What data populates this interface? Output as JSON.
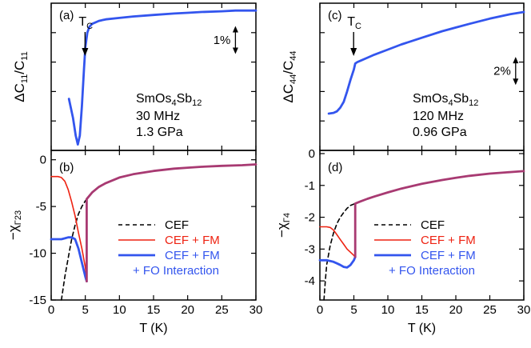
{
  "colors": {
    "cef": "#000000",
    "cef_fm": "#ee2211",
    "cef_fm_fo": "#3355ee",
    "common": "#a83a72"
  },
  "chart_data": [
    {
      "id": "a",
      "type": "line",
      "panel_label": "(a)",
      "ylabel_main": "ΔC",
      "ylabel_sub1": "11",
      "ylabel_mid": "/C",
      "ylabel_sub2": "11",
      "xlim": [
        0,
        30
      ],
      "ylim": [
        0,
        100
      ],
      "yticks_labeled": false,
      "annotation": {
        "label": "T",
        "label_sub": "C",
        "x": 5.2
      },
      "scale_bar": {
        "label": "1%",
        "x": 27,
        "y_from": 84,
        "y_to": 66
      },
      "sample_text": {
        "main": "SmOs",
        "s1": "4",
        "mid": "Sb",
        "s2": "12"
      },
      "info_lines": [
        "30 MHz",
        "1.3 GPa"
      ],
      "series": [
        {
          "color_key": "cef_fm_fo",
          "x": [
            2.6,
            3.2,
            3.6,
            3.9,
            4.2,
            4.5,
            4.8,
            5.0,
            5.3,
            5.6,
            6.0,
            7,
            8,
            10,
            12,
            15,
            18,
            20,
            22,
            25,
            27,
            30
          ],
          "y": [
            35,
            22,
            10,
            4,
            10,
            30,
            55,
            70,
            80,
            84,
            86,
            88,
            89,
            90,
            91,
            92,
            93,
            93.5,
            94,
            94.5,
            95,
            95
          ]
        }
      ]
    },
    {
      "id": "b",
      "type": "line",
      "panel_label": "(b)",
      "ylabel_main": "−χ",
      "ylabel_sub1": "Γ23",
      "xlabel": "T (K)",
      "xlim": [
        0,
        30
      ],
      "ylim": [
        -15,
        1
      ],
      "xticks": [
        0,
        5,
        10,
        15,
        20,
        25,
        30
      ],
      "yticks": [
        0,
        -5,
        -10,
        -15
      ],
      "ytick_labels": [
        "0",
        "-5",
        "-10",
        "-15"
      ],
      "legend": [
        {
          "label": "CEF",
          "color_key": "cef",
          "dash": true
        },
        {
          "label": "CEF + FM",
          "color_key": "cef_fm",
          "dash": false
        },
        {
          "label": "CEF + FM",
          "color_key": "cef_fm_fo",
          "dash": false
        },
        {
          "label": "+ FO Interaction",
          "color_key": "cef_fm_fo",
          "dash": false,
          "continuation": true
        }
      ],
      "series": [
        {
          "color_key": "cef",
          "dash": true,
          "x": [
            1.5,
            2,
            2.5,
            3,
            3.5,
            4,
            4.5,
            5,
            5.2
          ],
          "y": [
            -15,
            -12.5,
            -10.5,
            -8.5,
            -7,
            -5.8,
            -5,
            -4.4,
            -4.2
          ]
        },
        {
          "color_key": "cef_fm",
          "x": [
            0,
            1,
            1.5,
            2,
            2.5,
            3,
            3.5,
            4,
            4.5,
            5,
            5.2
          ],
          "y": [
            -1.8,
            -1.8,
            -1.9,
            -2.3,
            -3.2,
            -4.5,
            -6,
            -7.8,
            -9.5,
            -11.5,
            -13
          ]
        },
        {
          "color_key": "cef_fm_fo",
          "x": [
            0,
            1,
            1.5,
            2,
            2.5,
            3,
            3.5,
            4,
            4.5,
            5,
            5.2
          ],
          "y": [
            -8.5,
            -8.5,
            -8.5,
            -8.4,
            -8.3,
            -8.3,
            -8.5,
            -9.5,
            -11,
            -12.5,
            -13
          ]
        },
        {
          "color_key": "common",
          "x": [
            5.2,
            5.2,
            6,
            7,
            8,
            10,
            12,
            15,
            18,
            20,
            22,
            25,
            28,
            30
          ],
          "y": [
            -13,
            -4.2,
            -3.5,
            -2.9,
            -2.5,
            -1.9,
            -1.55,
            -1.2,
            -0.95,
            -0.85,
            -0.75,
            -0.65,
            -0.58,
            -0.5
          ]
        }
      ]
    },
    {
      "id": "c",
      "type": "line",
      "panel_label": "(c)",
      "ylabel_main": "ΔC",
      "ylabel_sub1": "44",
      "ylabel_mid": "/C",
      "ylabel_sub2": "44",
      "xlim": [
        0,
        30
      ],
      "ylim": [
        0,
        100
      ],
      "yticks_labeled": false,
      "annotation": {
        "label": "T",
        "label_sub": "C",
        "x": 5.2
      },
      "scale_bar": {
        "label": "2%",
        "x": 28.8,
        "y_from": 63,
        "y_to": 45
      },
      "sample_text": {
        "main": "SmOs",
        "s1": "4",
        "mid": "Sb",
        "s2": "12"
      },
      "info_lines": [
        "120 MHz",
        "0.96 GPa"
      ],
      "series": [
        {
          "color_key": "cef_fm_fo",
          "x": [
            1.3,
            2,
            2.5,
            3,
            3.5,
            4,
            4.5,
            5,
            5.2,
            5.5,
            6,
            7,
            8,
            10,
            12,
            15,
            18,
            20,
            22,
            25,
            28,
            30
          ],
          "y": [
            25,
            25.5,
            26.5,
            29,
            33,
            40,
            48,
            55,
            59,
            60,
            61,
            63,
            65,
            68.5,
            72,
            76.5,
            81,
            83.5,
            86,
            89.5,
            92.5,
            94
          ]
        }
      ]
    },
    {
      "id": "d",
      "type": "line",
      "panel_label": "(d)",
      "ylabel_main": "−χ",
      "ylabel_sub1": "Γ4",
      "xlabel": "T (K)",
      "xlim": [
        0,
        30
      ],
      "ylim": [
        -4.6,
        0.1
      ],
      "xticks": [
        0,
        5,
        10,
        15,
        20,
        25,
        30
      ],
      "yticks": [
        0,
        -1,
        -2,
        -3,
        -4
      ],
      "ytick_labels": [
        "0",
        "-1",
        "-2",
        "-3",
        "-4"
      ],
      "legend": [
        {
          "label": "CEF",
          "color_key": "cef",
          "dash": true
        },
        {
          "label": "CEF + FM",
          "color_key": "cef_fm",
          "dash": false
        },
        {
          "label": "CEF + FM",
          "color_key": "cef_fm_fo",
          "dash": false
        },
        {
          "label": "+ FO Interaction",
          "color_key": "cef_fm_fo",
          "dash": false,
          "continuation": true
        }
      ],
      "series": [
        {
          "color_key": "cef",
          "dash": true,
          "x": [
            0.6,
            0.8,
            1,
            1.5,
            2,
            2.5,
            3,
            3.5,
            4,
            4.5,
            5.2
          ],
          "y": [
            -4.6,
            -4,
            -3.5,
            -2.9,
            -2.5,
            -2.2,
            -2,
            -1.85,
            -1.72,
            -1.63,
            -1.57
          ]
        },
        {
          "color_key": "cef_fm",
          "x": [
            0,
            1,
            1.5,
            2,
            2.5,
            3,
            3.5,
            4,
            4.5,
            5,
            5.2
          ],
          "y": [
            -2.3,
            -2.3,
            -2.32,
            -2.4,
            -2.55,
            -2.7,
            -2.85,
            -3.0,
            -3.1,
            -3.2,
            -3.25
          ]
        },
        {
          "color_key": "cef_fm_fo",
          "x": [
            0,
            1,
            2,
            2.5,
            3,
            3.5,
            4,
            4.5,
            5,
            5.2
          ],
          "y": [
            -3.35,
            -3.35,
            -3.4,
            -3.45,
            -3.5,
            -3.56,
            -3.58,
            -3.5,
            -3.35,
            -3.25
          ]
        },
        {
          "color_key": "common",
          "x": [
            5.2,
            5.2,
            6,
            7,
            8,
            10,
            12,
            15,
            18,
            20,
            22,
            25,
            28,
            30
          ],
          "y": [
            -3.25,
            -1.57,
            -1.5,
            -1.42,
            -1.35,
            -1.22,
            -1.1,
            -0.95,
            -0.83,
            -0.76,
            -0.7,
            -0.63,
            -0.58,
            -0.55
          ]
        }
      ]
    }
  ]
}
